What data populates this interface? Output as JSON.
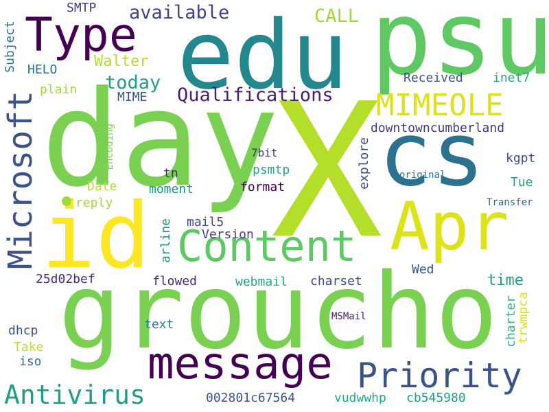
{
  "words": [
    {
      "text": "X",
      "color": "#b5de2b"
    },
    {
      "text": "day",
      "color": "#7ad151"
    },
    {
      "text": "groucho",
      "color": "#7ad151"
    },
    {
      "text": "edu",
      "color": "#23888e"
    },
    {
      "text": "psu",
      "color": "#5ec962"
    },
    {
      "text": "cs",
      "color": "#2c728e"
    },
    {
      "text": "id",
      "color": "#fde725"
    },
    {
      "text": "Apr",
      "color": "#dde318"
    },
    {
      "text": "Type",
      "color": "#440154"
    },
    {
      "text": "Content",
      "color": "#5ec962"
    },
    {
      "text": "message",
      "color": "#440154"
    },
    {
      "text": "Microsoft",
      "color": "#3b528b"
    },
    {
      "text": "MIMEOLE",
      "color": "#dde318"
    },
    {
      "text": "Priority",
      "color": "#3b528b"
    },
    {
      "text": "Antivirus",
      "color": "#1f9e89"
    },
    {
      "text": "Qualifications",
      "color": "#481f70"
    },
    {
      "text": "available",
      "color": "#414487"
    },
    {
      "text": "today",
      "color": "#1f9e89"
    },
    {
      "text": "CALL",
      "color": "#a0da39"
    },
    {
      "text": "Walter",
      "color": "#b5de2b"
    },
    {
      "text": "SMTP",
      "color": "#443983"
    },
    {
      "text": "HELO",
      "color": "#2c728e"
    },
    {
      "text": "plain",
      "color": "#a0da39"
    },
    {
      "text": "MIME",
      "color": "#3b528b"
    },
    {
      "text": "Subject",
      "color": "#2c728e"
    },
    {
      "text": "Encoding",
      "color": "#7ad151"
    },
    {
      "text": "Received",
      "color": "#3b528b"
    },
    {
      "text": "inet7",
      "color": "#22a884"
    },
    {
      "text": "downtowncumberland",
      "color": "#443983"
    },
    {
      "text": "kgpt",
      "color": "#3b528b"
    },
    {
      "text": "7bit",
      "color": "#472d7b"
    },
    {
      "text": "explore",
      "color": "#3e4a89"
    },
    {
      "text": "original",
      "color": "#2a788e"
    },
    {
      "text": "psmtp",
      "color": "#22a884"
    },
    {
      "text": "Tue",
      "color": "#1f9e89"
    },
    {
      "text": "tn",
      "color": "#482878"
    },
    {
      "text": "moment",
      "color": "#21918c"
    },
    {
      "text": "Date",
      "color": "#b5de2b"
    },
    {
      "text": "format",
      "color": "#440154"
    },
    {
      "text": "reply",
      "color": "#a0da39"
    },
    {
      "text": "Transfer",
      "color": "#355f8d"
    },
    {
      "text": "mail5",
      "color": "#3e4a89"
    },
    {
      "text": "Version",
      "color": "#433e85"
    },
    {
      "text": "arline",
      "color": "#21918c"
    },
    {
      "text": "25d02bef",
      "color": "#472d7b"
    },
    {
      "text": "flowed",
      "color": "#482878"
    },
    {
      "text": "webmail",
      "color": "#20a486"
    },
    {
      "text": "charset",
      "color": "#3e4a89"
    },
    {
      "text": "Wed",
      "color": "#3b528b"
    },
    {
      "text": "time",
      "color": "#1f9e89"
    },
    {
      "text": "charter",
      "color": "#35b779"
    },
    {
      "text": "trwmpca",
      "color": "#dde318"
    },
    {
      "text": "text",
      "color": "#2a788e"
    },
    {
      "text": "MSMail",
      "color": "#481f70"
    },
    {
      "text": "dhcp",
      "color": "#3b528b"
    },
    {
      "text": "Take",
      "color": "#b5de2b"
    },
    {
      "text": "iso",
      "color": "#2c728e"
    },
    {
      "text": "002801c67564",
      "color": "#3b528b"
    },
    {
      "text": "vudwwhp",
      "color": "#22a884"
    },
    {
      "text": "cb545980",
      "color": "#1f9e89"
    }
  ]
}
